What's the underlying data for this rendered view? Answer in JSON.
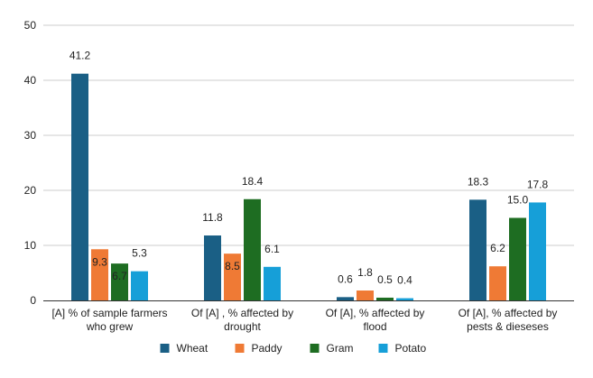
{
  "chart_data": {
    "type": "bar",
    "title": "",
    "xlabel": "",
    "ylabel": "",
    "ylim": [
      0,
      50
    ],
    "yticks": [
      0,
      10,
      20,
      30,
      40,
      50
    ],
    "grid": true,
    "legend_position": "bottom",
    "categories": [
      [
        "[A] % of sample farmers",
        "who grew"
      ],
      [
        "Of [A] , % affected by",
        "drought"
      ],
      [
        "Of [A], % affected by",
        "flood"
      ],
      [
        "Of [A], % affected by",
        "pests & dieseses"
      ]
    ],
    "series": [
      {
        "name": "Wheat",
        "color": "#1a5f85",
        "values": [
          41.2,
          11.8,
          0.6,
          18.3
        ],
        "labels": [
          "41.2",
          "11.8",
          "0.6",
          "18.3"
        ]
      },
      {
        "name": "Paddy",
        "color": "#ef7a35",
        "values": [
          9.3,
          8.5,
          1.8,
          6.2
        ],
        "labels": [
          "9.3",
          "8.5",
          "1.8",
          "6.2"
        ]
      },
      {
        "name": "Gram",
        "color": "#1e6d22",
        "values": [
          6.7,
          18.4,
          0.5,
          15.0
        ],
        "labels": [
          "6.7",
          "18.4",
          "0.5",
          "15.0"
        ]
      },
      {
        "name": "Potato",
        "color": "#169fd8",
        "values": [
          5.3,
          6.1,
          0.4,
          17.8
        ],
        "labels": [
          "5.3",
          "6.1",
          "0.4",
          "17.8"
        ]
      }
    ]
  }
}
